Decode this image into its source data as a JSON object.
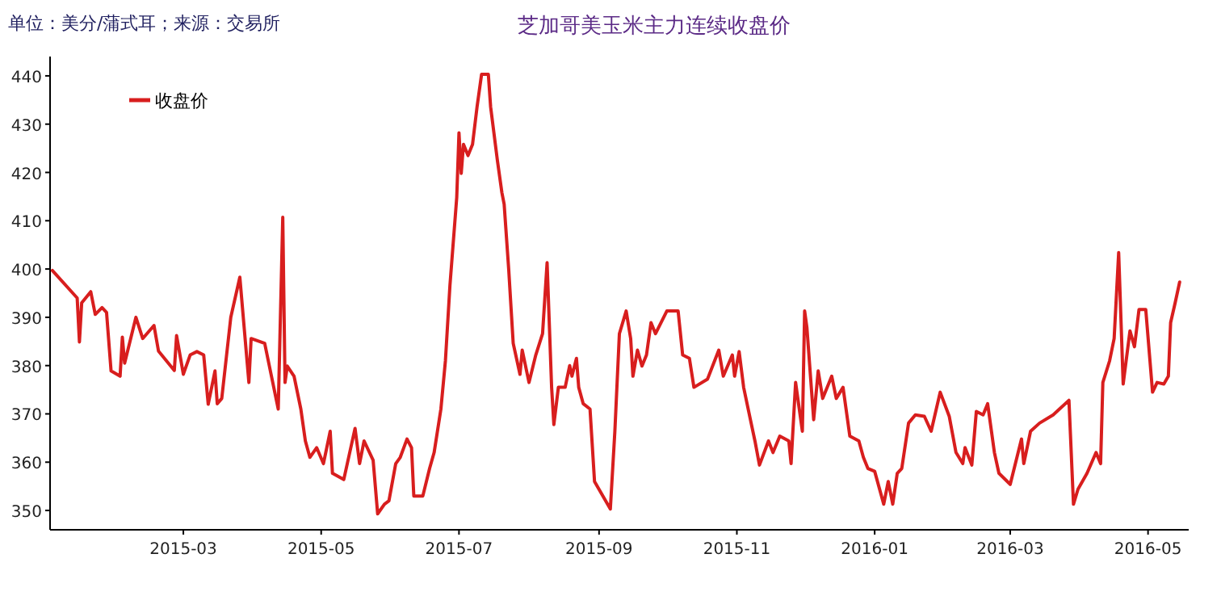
{
  "chart_data": {
    "type": "line",
    "title": "芝加哥美玉米主力连续收盘价",
    "annotations": [
      "单位：美分/蒲式耳；来源：交易所"
    ],
    "x": [
      "2015-01-02",
      "2015-01-13",
      "2015-01-14",
      "2015-01-15",
      "2015-01-19",
      "2015-01-21",
      "2015-01-24",
      "2015-01-26",
      "2015-01-28",
      "2015-02-01",
      "2015-02-02",
      "2015-02-03",
      "2015-02-08",
      "2015-02-11",
      "2015-02-16",
      "2015-02-18",
      "2015-02-25",
      "2015-02-26",
      "2015-03-01",
      "2015-03-04",
      "2015-03-07",
      "2015-03-10",
      "2015-03-12",
      "2015-03-15",
      "2015-03-16",
      "2015-03-18",
      "2015-03-22",
      "2015-03-26",
      "2015-03-30",
      "2015-03-31",
      "2015-04-06",
      "2015-04-09",
      "2015-04-12",
      "2015-04-14",
      "2015-04-15",
      "2015-04-16",
      "2015-04-19",
      "2015-04-22",
      "2015-04-24",
      "2015-04-26",
      "2015-04-29",
      "2015-05-02",
      "2015-05-05",
      "2015-05-06",
      "2015-05-11",
      "2015-05-16",
      "2015-05-18",
      "2015-05-20",
      "2015-05-24",
      "2015-05-26",
      "2015-05-29",
      "2015-05-31",
      "2015-06-03",
      "2015-06-05",
      "2015-06-08",
      "2015-06-10",
      "2015-06-11",
      "2015-06-15",
      "2015-06-18",
      "2015-06-20",
      "2015-06-23",
      "2015-06-25",
      "2015-06-27",
      "2015-06-30",
      "2015-07-01",
      "2015-07-02",
      "2015-07-03",
      "2015-07-05",
      "2015-07-07",
      "2015-07-09",
      "2015-07-11",
      "2015-07-14",
      "2015-07-15",
      "2015-07-18",
      "2015-07-20",
      "2015-07-21",
      "2015-07-23",
      "2015-07-25",
      "2015-07-28",
      "2015-07-29",
      "2015-08-01",
      "2015-08-04",
      "2015-08-07",
      "2015-08-09",
      "2015-08-11",
      "2015-08-12",
      "2015-08-14",
      "2015-08-17",
      "2015-08-19",
      "2015-08-20",
      "2015-08-22",
      "2015-08-23",
      "2015-08-25",
      "2015-08-28",
      "2015-08-30",
      "2015-09-06",
      "2015-09-08",
      "2015-09-10",
      "2015-09-13",
      "2015-09-15",
      "2015-09-16",
      "2015-09-18",
      "2015-09-20",
      "2015-09-22",
      "2015-09-24",
      "2015-09-26",
      "2015-10-01",
      "2015-10-06",
      "2015-10-08",
      "2015-10-11",
      "2015-10-13",
      "2015-10-19",
      "2015-10-24",
      "2015-10-26",
      "2015-10-30",
      "2015-10-31",
      "2015-11-02",
      "2015-11-04",
      "2015-11-07",
      "2015-11-09",
      "2015-11-11",
      "2015-11-15",
      "2015-11-17",
      "2015-11-20",
      "2015-11-24",
      "2015-11-25",
      "2015-11-27",
      "2015-11-30",
      "2015-12-01",
      "2015-12-02",
      "2015-12-05",
      "2015-12-07",
      "2015-12-09",
      "2015-12-13",
      "2015-12-15",
      "2015-12-18",
      "2015-12-21",
      "2015-12-25",
      "2015-12-27",
      "2015-12-29",
      "2016-01-01",
      "2016-01-05",
      "2016-01-07",
      "2016-01-09",
      "2016-01-11",
      "2016-01-13",
      "2016-01-16",
      "2016-01-19",
      "2016-01-23",
      "2016-01-26",
      "2016-01-30",
      "2016-02-03",
      "2016-02-06",
      "2016-02-09",
      "2016-02-10",
      "2016-02-13",
      "2016-02-15",
      "2016-02-18",
      "2016-02-20",
      "2016-02-23",
      "2016-02-25",
      "2016-03-01",
      "2016-03-06",
      "2016-03-07",
      "2016-03-10",
      "2016-03-14",
      "2016-03-20",
      "2016-03-27",
      "2016-03-29",
      "2016-03-31",
      "2016-04-04",
      "2016-04-08",
      "2016-04-10",
      "2016-04-11",
      "2016-04-14",
      "2016-04-16",
      "2016-04-18",
      "2016-04-20",
      "2016-04-23",
      "2016-04-25",
      "2016-04-27",
      "2016-04-30",
      "2016-05-03",
      "2016-05-05",
      "2016-05-08",
      "2016-05-10",
      "2016-05-11",
      "2016-05-13",
      "2016-05-15"
    ],
    "series": [
      {
        "name": "收盘价",
        "color": "#d81e1e",
        "values": [
          399.7,
          394,
          384.9,
          393,
          395.3,
          390.6,
          392,
          391,
          378.9,
          377.8,
          385.9,
          380.5,
          390,
          385.6,
          388.3,
          383,
          379,
          386.2,
          378.2,
          382.2,
          382.9,
          382.2,
          372,
          378.9,
          372.1,
          373.2,
          390,
          398.3,
          376.5,
          385.6,
          384.6,
          377.8,
          371,
          410.7,
          376.5,
          379.9,
          377.8,
          371,
          364.4,
          361,
          363,
          359.7,
          366.4,
          357.7,
          356.4,
          367,
          359.7,
          364.4,
          360.4,
          349.3,
          351.3,
          352,
          359.7,
          361,
          364.8,
          363,
          353,
          353,
          358.7,
          362,
          371,
          381,
          396.6,
          414.8,
          428.2,
          419.8,
          425.8,
          423.5,
          425.8,
          433.6,
          440.3,
          440.3,
          433.6,
          422.5,
          415.8,
          413.4,
          400,
          384.6,
          378.2,
          383.2,
          376.5,
          382.2,
          386.6,
          401.3,
          375.5,
          367.8,
          375.5,
          375.5,
          380,
          377.8,
          381.5,
          375.5,
          372.1,
          371,
          356,
          350.3,
          366.4,
          386.6,
          391.3,
          385.6,
          377.8,
          383.2,
          379.9,
          382.2,
          388.9,
          386.6,
          391.3,
          391.3,
          382.2,
          381.5,
          375.5,
          377.2,
          383.2,
          377.8,
          382.2,
          377.8,
          382.9,
          375.5,
          368.8,
          364.4,
          359.4,
          364.4,
          362,
          365.4,
          364.4,
          359.7,
          376.5,
          366.4,
          391.3,
          387.9,
          368.8,
          378.9,
          373.2,
          377.8,
          373.2,
          375.5,
          365.4,
          364.4,
          361,
          358.7,
          358.1,
          351.3,
          356,
          351.3,
          357.7,
          358.7,
          368.1,
          369.8,
          369.5,
          366.4,
          374.5,
          369.5,
          362,
          359.7,
          363,
          359.4,
          370.5,
          369.8,
          372.1,
          362,
          357.7,
          355.4,
          364.8,
          359.7,
          366.4,
          368.1,
          369.8,
          372.8,
          351.3,
          354.4,
          357.7,
          362,
          359.7,
          376.5,
          381,
          385.6,
          403.4,
          376.2,
          387.2,
          383.9,
          391.6,
          391.6,
          374.5,
          376.5,
          376.2,
          377.8,
          388.9,
          393,
          397.3
        ]
      }
    ],
    "xlim": [
      "2015-01-01",
      "2016-05-19"
    ],
    "ylim": [
      346,
      444
    ],
    "xticks": [
      {
        "value": "2015-03-01",
        "label": "2015-03"
      },
      {
        "value": "2015-05-01",
        "label": "2015-05"
      },
      {
        "value": "2015-07-01",
        "label": "2015-07"
      },
      {
        "value": "2015-09-01",
        "label": "2015-09"
      },
      {
        "value": "2015-11-01",
        "label": "2015-11"
      },
      {
        "value": "2016-01-01",
        "label": "2016-01"
      },
      {
        "value": "2016-03-01",
        "label": "2016-03"
      },
      {
        "value": "2016-05-01",
        "label": "2016-05"
      }
    ],
    "yticks": [
      350,
      360,
      370,
      380,
      390,
      400,
      410,
      420,
      430,
      440
    ],
    "legend": "top left"
  }
}
